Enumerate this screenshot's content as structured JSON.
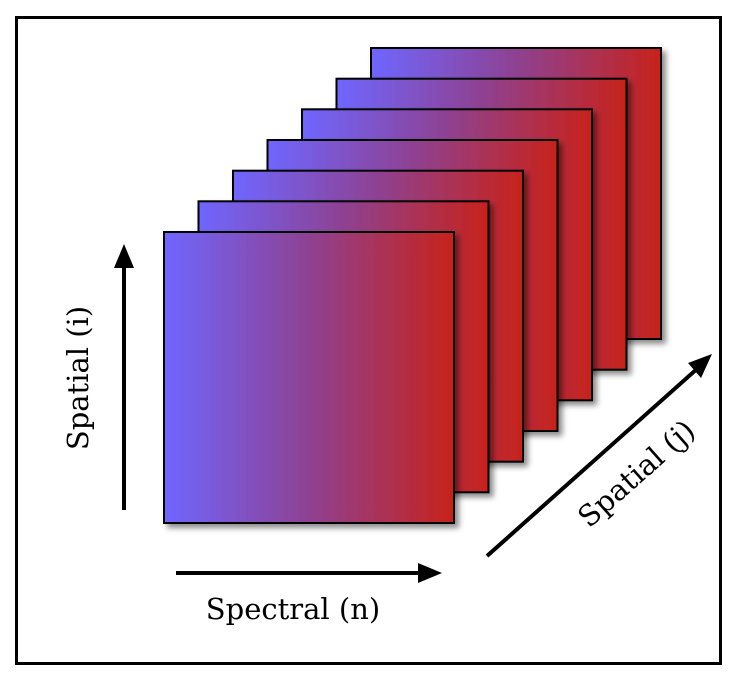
{
  "diagram": {
    "axes": {
      "spatial_i": "Spatial (i)",
      "spectral_n": "Spectral (n)",
      "spatial_j": "Spatial (j)"
    },
    "layer_count": 7,
    "colors": {
      "gradient_start": "#6f66ff",
      "gradient_mid": "#8e4192",
      "gradient_end": "#c7231b",
      "outline": "#000000",
      "background": "#ffffff"
    }
  }
}
